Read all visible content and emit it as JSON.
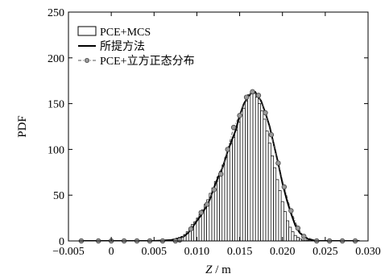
{
  "chart_data": {
    "type": "bar",
    "title": "",
    "xlabel_var": "Z",
    "xlabel_unit": " / m",
    "ylabel": "PDF",
    "xlim": [
      -0.005,
      0.03
    ],
    "ylim": [
      0,
      250
    ],
    "x_ticks": [
      "-0.005",
      "0",
      "0.005",
      "0.010",
      "0.015",
      "0.020",
      "0.025",
      "0.030"
    ],
    "y_ticks": [
      "0",
      "50",
      "100",
      "150",
      "200",
      "250"
    ],
    "grid": false,
    "legend_position": "top-left",
    "legend": [
      {
        "label": "PCE+MCS",
        "style": "hatched-bar"
      },
      {
        "label": "所提方法",
        "style": "solid-line"
      },
      {
        "label": "PCE+立方正态分布",
        "style": "dash-dot-circle"
      }
    ],
    "histogram": {
      "name": "PCE+MCS",
      "bin_width": 0.0003,
      "x": [
        0.0065,
        0.0068,
        0.0071,
        0.0074,
        0.0077,
        0.008,
        0.0083,
        0.0086,
        0.0089,
        0.0092,
        0.0095,
        0.0098,
        0.0101,
        0.0104,
        0.0107,
        0.011,
        0.0113,
        0.0116,
        0.0119,
        0.0122,
        0.0125,
        0.0128,
        0.0131,
        0.0134,
        0.0137,
        0.014,
        0.0143,
        0.0146,
        0.0149,
        0.0152,
        0.0155,
        0.0158,
        0.0161,
        0.0164,
        0.0167,
        0.017,
        0.0173,
        0.0176,
        0.0179,
        0.0182,
        0.0185,
        0.0188,
        0.0191,
        0.0194,
        0.0197,
        0.02,
        0.0203,
        0.0206,
        0.0209,
        0.0212,
        0.0215,
        0.0218,
        0.0221,
        0.0224,
        0.0227,
        0.023
      ],
      "values": [
        0.5,
        1,
        1,
        2,
        3,
        4,
        5,
        7,
        10,
        14,
        18,
        21,
        25,
        29,
        34,
        40,
        45,
        52,
        58,
        65,
        70,
        76,
        83,
        91,
        98,
        106,
        113,
        121,
        130,
        138,
        145,
        153,
        160,
        162,
        161,
        157,
        150,
        142,
        133,
        120,
        107,
        93,
        80,
        67,
        55,
        43,
        32,
        22,
        15,
        10,
        6,
        4,
        2,
        1,
        1,
        0.5
      ]
    },
    "series": [
      {
        "name": "所提方法",
        "x": [
          -0.0035,
          0.005,
          0.007,
          0.008,
          0.0085,
          0.009,
          0.0095,
          0.01,
          0.0105,
          0.011,
          0.0115,
          0.012,
          0.0125,
          0.013,
          0.0135,
          0.014,
          0.0145,
          0.015,
          0.0155,
          0.016,
          0.0165,
          0.0168,
          0.017,
          0.0175,
          0.018,
          0.0185,
          0.019,
          0.0195,
          0.02,
          0.0205,
          0.021,
          0.0215,
          0.022,
          0.0225,
          0.023,
          0.024,
          0.029
        ],
        "y": [
          0,
          0,
          1,
          3,
          5,
          9,
          15,
          22,
          28,
          36,
          45,
          58,
          70,
          80,
          95,
          108,
          120,
          137,
          150,
          158,
          163,
          163,
          160,
          153,
          140,
          125,
          105,
          85,
          63,
          45,
          30,
          17,
          9,
          5,
          2,
          0,
          0
        ]
      },
      {
        "name": "PCE+立方正态分布",
        "x": [
          -0.0035,
          -0.0015,
          0,
          0.0015,
          0.003,
          0.0045,
          0.006,
          0.0075,
          0.008,
          0.0093,
          0.0105,
          0.0112,
          0.012,
          0.0128,
          0.0136,
          0.0143,
          0.015,
          0.0158,
          0.0165,
          0.0172,
          0.018,
          0.0187,
          0.0195,
          0.0202,
          0.021,
          0.0218,
          0.0225,
          0.024,
          0.0255,
          0.027,
          0.0285
        ],
        "y": [
          0,
          0,
          0,
          0,
          0,
          0,
          0,
          0,
          1,
          13,
          31,
          40,
          56,
          73,
          100,
          124,
          137,
          157,
          163,
          159,
          140,
          116,
          85,
          59,
          33,
          14,
          5,
          0,
          0,
          0,
          0
        ]
      }
    ]
  }
}
